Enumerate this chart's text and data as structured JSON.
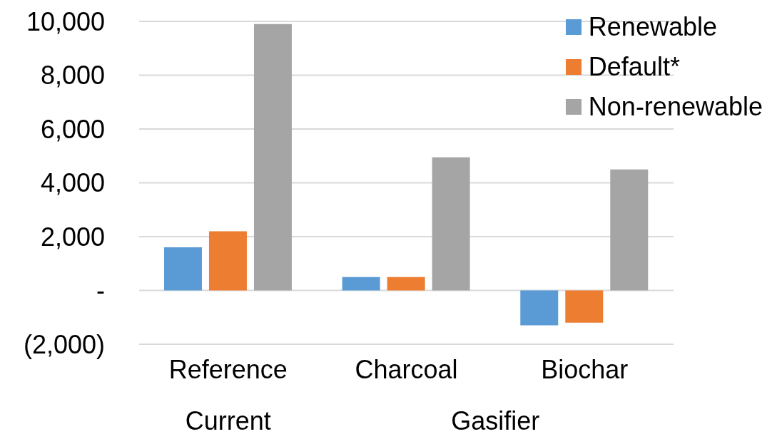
{
  "chart_data": {
    "type": "bar",
    "categories": [
      "Reference",
      "Charcoal",
      "Biochar"
    ],
    "series": [
      {
        "name": "Renewable",
        "color": "#5b9bd5",
        "values": [
          1600,
          500,
          -1300
        ]
      },
      {
        "name": "Default*",
        "color": "#ed7d31",
        "values": [
          2200,
          500,
          -1200
        ]
      },
      {
        "name": "Non-renewable",
        "color": "#a5a5a5",
        "values": [
          9900,
          4950,
          4500
        ]
      }
    ],
    "ylim": [
      -2000,
      10000
    ],
    "yticks": [
      {
        "value": -2000,
        "label": "(2,000)"
      },
      {
        "value": 0,
        "label": "-"
      },
      {
        "value": 2000,
        "label": "2,000"
      },
      {
        "value": 4000,
        "label": "4,000"
      },
      {
        "value": 6000,
        "label": "6,000"
      },
      {
        "value": 8000,
        "label": "8,000"
      },
      {
        "value": 10000,
        "label": "10,000"
      }
    ],
    "grid": "y",
    "legend": "top right",
    "annotations": [
      "Current",
      "Gasifier"
    ]
  }
}
